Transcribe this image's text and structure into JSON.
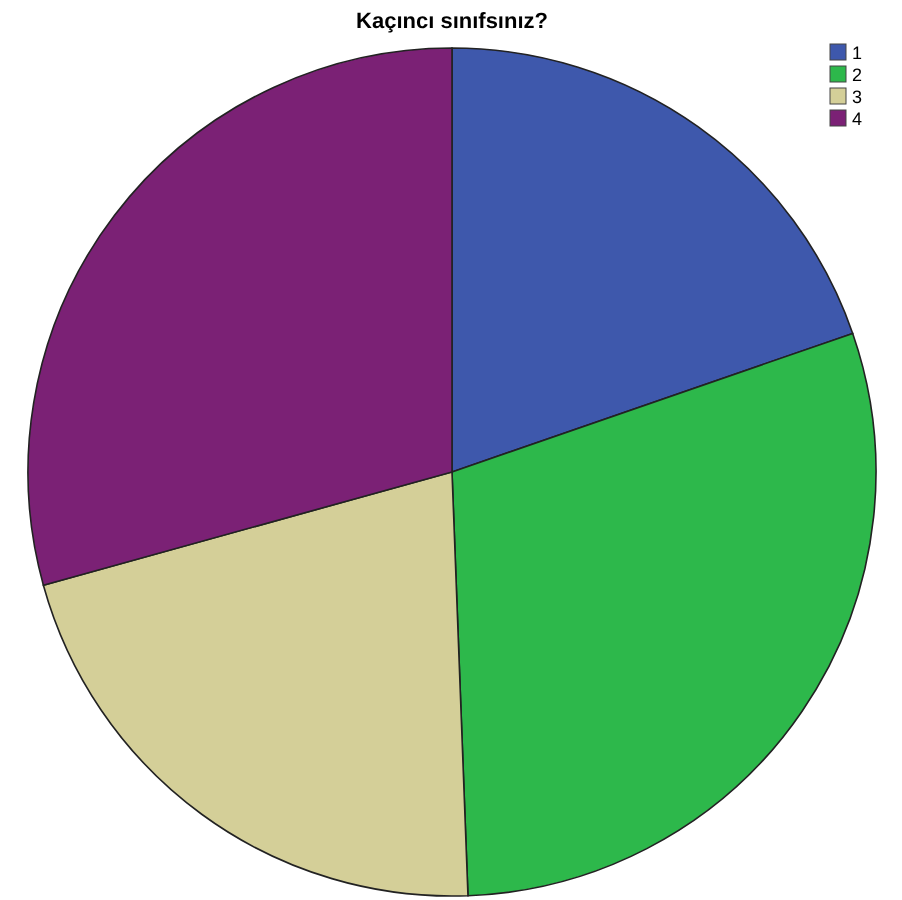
{
  "chart_data": {
    "type": "pie",
    "title": "Kaçıncı sınıfsınız?",
    "categories": [
      "1",
      "2",
      "3",
      "4"
    ],
    "values": [
      19.7,
      29.7,
      21.3,
      29.3
    ],
    "colors": [
      "#3e58ac",
      "#2db84b",
      "#d4cf98",
      "#7b2175"
    ],
    "legend": "top right"
  }
}
